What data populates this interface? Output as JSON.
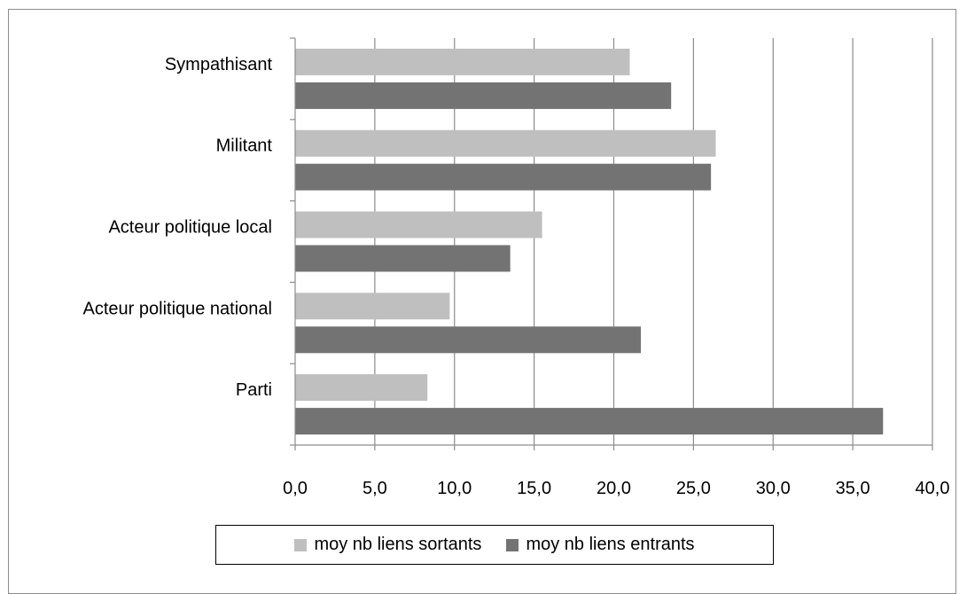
{
  "chart_data": {
    "type": "bar",
    "orientation": "horizontal",
    "title": "",
    "xlabel": "",
    "ylabel": "",
    "categories": [
      "Sympathisant",
      "Militant",
      "Acteur politique local",
      "Acteur politique national",
      "Parti"
    ],
    "series": [
      {
        "name": "moy nb liens sortants",
        "values": [
          21.0,
          26.4,
          15.5,
          9.7,
          8.3
        ],
        "color": "#bfbfbf"
      },
      {
        "name": "moy nb liens entrants",
        "values": [
          23.6,
          26.1,
          13.5,
          21.7,
          36.9
        ],
        "color": "#737373"
      }
    ],
    "xlim": [
      0,
      40
    ],
    "xticks": [
      "0,0",
      "5,0",
      "10,0",
      "15,0",
      "20,0",
      "25,0",
      "30,0",
      "35,0",
      "40,0"
    ],
    "grid": "vertical",
    "legend_position": "bottom",
    "colors": {
      "gridline": "#8c8c8c",
      "frame": "#8c8c8c"
    }
  }
}
